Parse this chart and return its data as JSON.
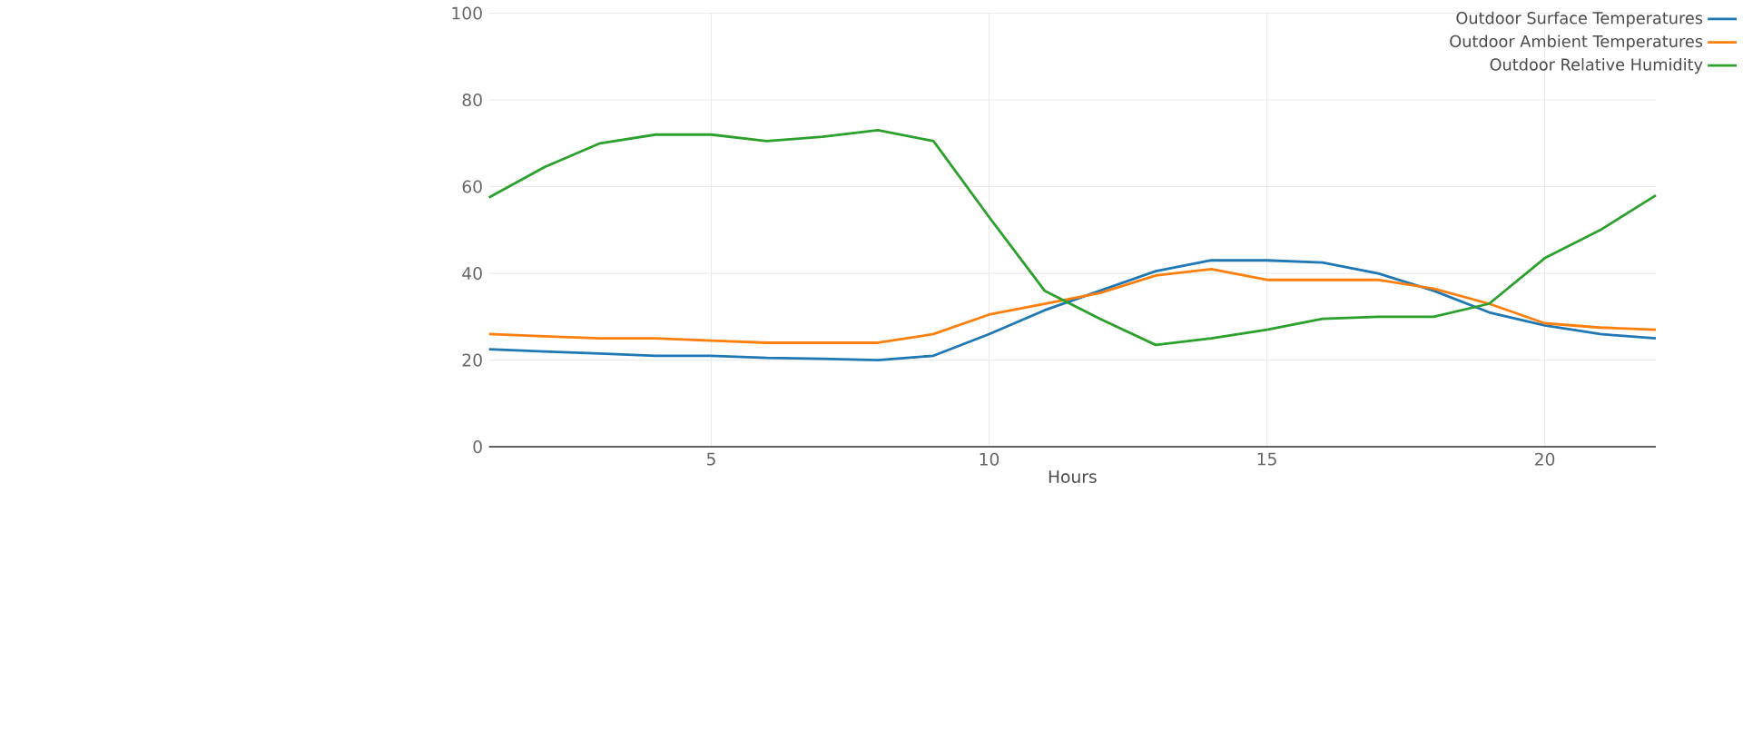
{
  "chart_data": {
    "type": "line",
    "xlabel": "Hours",
    "x": [
      1,
      2,
      3,
      4,
      5,
      6,
      7,
      8,
      9,
      10,
      11,
      12,
      13,
      14,
      15,
      16,
      17,
      18,
      19,
      20,
      21,
      22
    ],
    "series": [
      {
        "name": "Outdoor Surface Temperatures",
        "color": "#1f77b4",
        "values": [
          22.5,
          22,
          21.5,
          21,
          21,
          20.5,
          20.3,
          20,
          21,
          26,
          31.5,
          36,
          40.5,
          43,
          43,
          42.5,
          40,
          36,
          31,
          28,
          26,
          25
        ]
      },
      {
        "name": "Outdoor Ambient Temperatures",
        "color": "#ff7f0e",
        "values": [
          26,
          25.5,
          25,
          25,
          24.5,
          24,
          24,
          24,
          26,
          30.5,
          33,
          35.5,
          39.5,
          41,
          38.5,
          38.5,
          38.5,
          36.5,
          33,
          28.5,
          27.5,
          27
        ]
      },
      {
        "name": "Outdoor Relative Humidity",
        "color": "#2ca02c",
        "values": [
          57.5,
          64.5,
          70,
          72,
          72,
          70.5,
          71.5,
          73,
          70.5,
          53,
          36,
          29.5,
          23.5,
          25,
          27,
          29.5,
          30,
          30,
          33,
          43.5,
          50,
          58
        ]
      }
    ],
    "xlim": [
      1,
      22
    ],
    "ylim": [
      0,
      100
    ],
    "xticks": [
      5,
      10,
      15,
      20
    ],
    "yticks": [
      0,
      20,
      40,
      60,
      80,
      100
    ],
    "grid": true,
    "legend": "top right"
  }
}
